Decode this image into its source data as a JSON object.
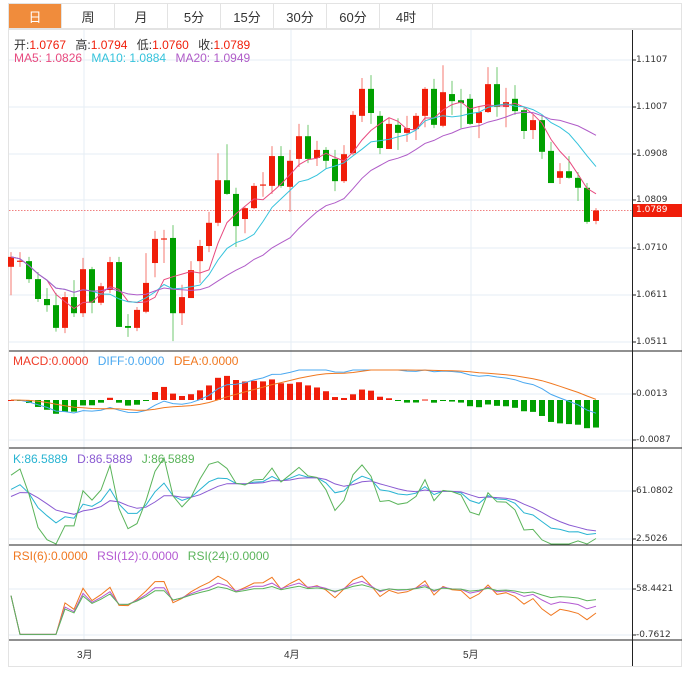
{
  "tabs": [
    "日",
    "周",
    "月",
    "5分",
    "15分",
    "30分",
    "60分",
    "4时"
  ],
  "active_tab": 0,
  "ohlc_legend": {
    "open_label": "开:",
    "open": "1.0767",
    "high_label": "高:",
    "high": "1.0794",
    "low_label": "低:",
    "low": "1.0760",
    "close_label": "收:",
    "close": "1.0789"
  },
  "ma_legend": {
    "ma5": "MA5: 1.0826",
    "ma10": "MA10: 1.0884",
    "ma20": "MA20: 1.0949"
  },
  "macd_legend": {
    "macd": "MACD:0.0000",
    "diff": "DIFF:0.0000",
    "dea": "DEA:0.0000"
  },
  "kdj_legend": {
    "k": "K:86.5889",
    "d": "D:86.5889",
    "j": "J:86.5889"
  },
  "rsi_legend": {
    "rsi6": "RSI(6):0.0000",
    "rsi12": "RSI(12):0.0000",
    "rsi24": "RSI(24):0.0000"
  },
  "last_price": "1.0789",
  "colors": {
    "up": "#f01e0a",
    "down": "#00a000",
    "ma5": "#e84a7f",
    "ma10": "#35c3dc",
    "ma20": "#b05cc8",
    "accent": "#f08c3c"
  },
  "chart_data": {
    "type": "candlestick",
    "price_axis_ticks": [
      "1.1107",
      "1.1007",
      "1.0908",
      "1.0809",
      "1.0710",
      "1.0611",
      "1.0511"
    ],
    "macd_axis_ticks": [
      "0.0013",
      "-0.0087"
    ],
    "kdj_axis_ticks": [
      "61.0802",
      "2.5026"
    ],
    "rsi_axis_ticks": [
      "58.4421",
      "-0.7612"
    ],
    "x_labels": [
      "3月",
      "4月",
      "5月"
    ],
    "x_label_index": [
      8,
      31,
      51
    ],
    "ohlc": [
      [
        1.067,
        1.0701,
        1.061,
        1.0691
      ],
      [
        1.0682,
        1.0701,
        1.067,
        1.0683
      ],
      [
        1.0682,
        1.0691,
        1.0636,
        1.0644
      ],
      [
        1.0644,
        1.0659,
        1.0596,
        1.0602
      ],
      [
        1.0602,
        1.0625,
        1.0575,
        1.0589
      ],
      [
        1.0589,
        1.0615,
        1.0533,
        1.0541
      ],
      [
        1.0541,
        1.0617,
        1.053,
        1.0606
      ],
      [
        1.0606,
        1.0642,
        1.0564,
        1.0572
      ],
      [
        1.0572,
        1.0689,
        1.0564,
        1.0665
      ],
      [
        1.0665,
        1.067,
        1.0572,
        1.0594
      ],
      [
        1.0594,
        1.0636,
        1.0589,
        1.0629
      ],
      [
        1.0621,
        1.0691,
        1.0615,
        1.068
      ],
      [
        1.068,
        1.0691,
        1.0543,
        1.0543
      ],
      [
        1.0545,
        1.057,
        1.0522,
        1.0541
      ],
      [
        1.0541,
        1.0585,
        1.0534,
        1.0579
      ],
      [
        1.0575,
        1.0699,
        1.0572,
        1.0636
      ],
      [
        1.0678,
        1.0746,
        1.0648,
        1.0729
      ],
      [
        1.0728,
        1.0748,
        1.0678,
        1.073
      ],
      [
        1.0731,
        1.0758,
        1.0513,
        1.0572
      ],
      [
        1.0572,
        1.0632,
        1.0547,
        1.0606
      ],
      [
        1.0604,
        1.0682,
        1.0604,
        1.0663
      ],
      [
        1.0682,
        1.0727,
        1.0636,
        1.0714
      ],
      [
        1.0714,
        1.0786,
        1.0701,
        1.0763
      ],
      [
        1.0763,
        1.091,
        1.0756,
        1.0853
      ],
      [
        1.0853,
        1.0929,
        1.0822,
        1.0824
      ],
      [
        1.0824,
        1.0837,
        1.0712,
        1.0756
      ],
      [
        1.0771,
        1.0796,
        1.0741,
        1.0794
      ],
      [
        1.0794,
        1.0847,
        1.0792,
        1.0841
      ],
      [
        1.0842,
        1.087,
        1.0818,
        1.0844
      ],
      [
        1.0841,
        1.0925,
        1.0824,
        1.0904
      ],
      [
        1.0904,
        1.0925,
        1.0837,
        1.0841
      ],
      [
        1.0839,
        1.0917,
        1.0786,
        1.0894
      ],
      [
        1.0898,
        1.0972,
        1.0881,
        1.0946
      ],
      [
        1.0946,
        1.097,
        1.0889,
        1.0898
      ],
      [
        1.09,
        1.0936,
        1.0883,
        1.0917
      ],
      [
        1.0917,
        1.0923,
        1.0877,
        1.0894
      ],
      [
        1.0898,
        1.0917,
        1.083,
        1.0851
      ],
      [
        1.0851,
        1.0927,
        1.0847,
        1.0908
      ],
      [
        1.091,
        1.0999,
        1.0906,
        1.0991
      ],
      [
        1.0989,
        1.1069,
        1.0976,
        1.1046
      ],
      [
        1.1046,
        1.1075,
        1.0972,
        1.0995
      ],
      [
        1.0989,
        1.0999,
        1.0908,
        1.0921
      ],
      [
        1.0919,
        1.0984,
        1.0919,
        1.0972
      ],
      [
        1.097,
        1.0984,
        1.0917,
        1.0953
      ],
      [
        1.0953,
        1.0989,
        1.0934,
        1.0963
      ],
      [
        1.0961,
        1.0995,
        1.0938,
        1.0989
      ],
      [
        1.0989,
        1.105,
        1.0965,
        1.1046
      ],
      [
        1.1046,
        1.1067,
        1.0963,
        1.097
      ],
      [
        1.0968,
        1.1096,
        1.0965,
        1.1039
      ],
      [
        1.1035,
        1.1063,
        1.0991,
        1.102
      ],
      [
        1.1022,
        1.1046,
        1.0963,
        1.1016
      ],
      [
        1.1025,
        1.1035,
        1.097,
        1.0972
      ],
      [
        1.0974,
        1.1008,
        1.0942,
        1.0997
      ],
      [
        1.0997,
        1.1092,
        1.0995,
        1.1056
      ],
      [
        1.1056,
        1.1092,
        1.0987,
        1.1008
      ],
      [
        1.1008,
        1.1048,
        1.0965,
        1.1018
      ],
      [
        1.1025,
        1.1054,
        1.0991,
        1.0999
      ],
      [
        1.1001,
        1.1006,
        1.094,
        1.0957
      ],
      [
        1.0959,
        1.0991,
        1.094,
        1.098
      ],
      [
        1.098,
        1.0991,
        1.0898,
        1.0913
      ],
      [
        1.0915,
        1.0934,
        1.0847,
        1.0847
      ],
      [
        1.0858,
        1.0889,
        1.0845,
        1.0872
      ],
      [
        1.0872,
        1.0904,
        1.0856,
        1.0858
      ],
      [
        1.0858,
        1.087,
        1.0809,
        1.0837
      ],
      [
        1.0837,
        1.0847,
        1.0761,
        1.0765
      ],
      [
        1.0767,
        1.0794,
        1.076,
        1.0789
      ]
    ]
  }
}
